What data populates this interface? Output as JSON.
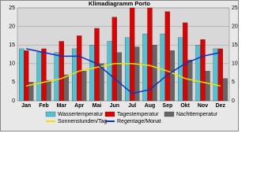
{
  "chart_data": {
    "type": "bar",
    "title": "Klimadiagramm Porto",
    "categories": [
      "Jan",
      "Feb",
      "Mar",
      "Apr",
      "Mai",
      "Jun",
      "Jul",
      "Aug",
      "Sep",
      "Okt",
      "Nov",
      "Dez"
    ],
    "ylim": [
      0,
      25
    ],
    "yticks": [
      0,
      5,
      10,
      15,
      20,
      25
    ],
    "y2lim": [
      0,
      25
    ],
    "y2ticks": [
      0,
      5,
      10,
      15,
      20,
      25
    ],
    "grid": true,
    "series": [
      {
        "name": "Wassertemperatur",
        "color": "#4dc3d6",
        "values": [
          14,
          13,
          13,
          14,
          15,
          16,
          17,
          18,
          18,
          17,
          15,
          14
        ]
      },
      {
        "name": "Tagestemperatur",
        "color": "#e00000",
        "values": [
          13.5,
          14,
          16,
          17.5,
          19.5,
          22.5,
          25,
          25,
          24,
          21,
          16.5,
          14
        ]
      },
      {
        "name": "Nachttemperatur",
        "color": "#666666",
        "values": [
          5,
          5.5,
          7,
          8,
          10,
          13,
          14.5,
          15,
          13.5,
          11,
          8,
          6
        ]
      },
      {
        "name": "Sonnenstunden/Tag",
        "color": "#f0e000",
        "type": "line",
        "axis": "y2",
        "values": [
          4,
          5,
          6,
          8,
          9,
          10,
          10,
          9.5,
          8,
          6,
          5,
          4
        ]
      },
      {
        "name": "Regentage/Monat",
        "color": "#1030c0",
        "type": "line",
        "axis": "y2",
        "values": [
          14,
          13,
          12,
          12,
          10,
          6,
          2,
          3,
          7,
          10,
          12,
          13
        ]
      }
    ]
  }
}
